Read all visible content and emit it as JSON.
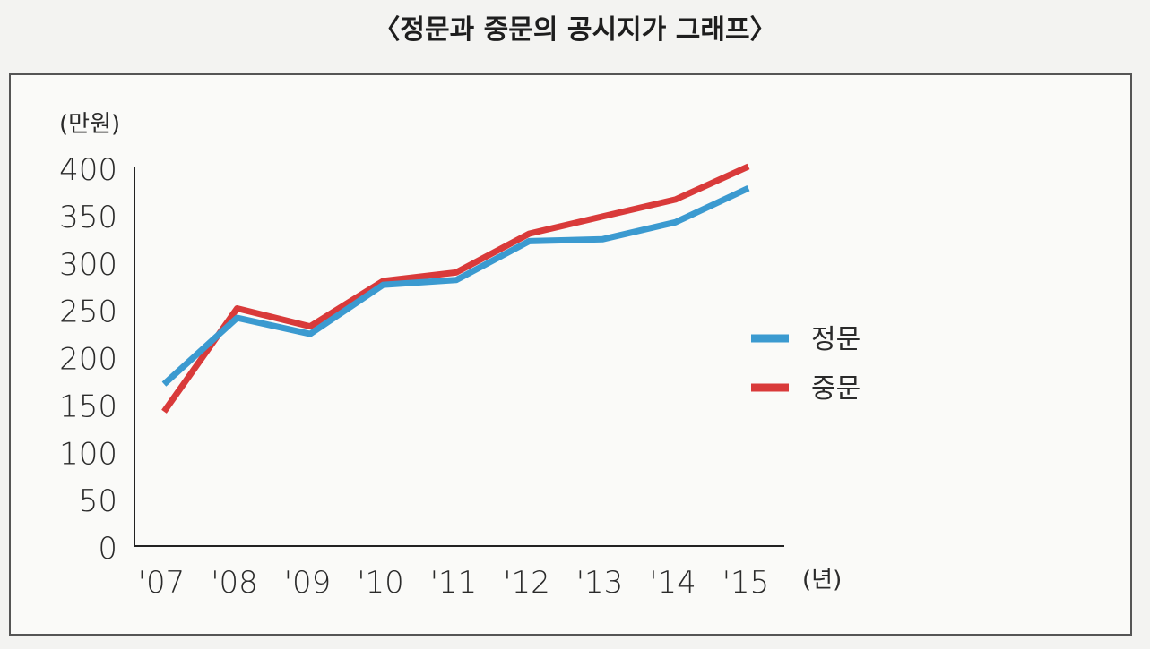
{
  "chart_data": {
    "type": "line",
    "title": "〈정문과 중문의 공시지가 그래프〉",
    "ylabel": "(만원)",
    "xlabel": "(년)",
    "ylim": [
      0,
      400
    ],
    "yticks": [
      "0",
      "50",
      "100",
      "150",
      "200",
      "250",
      "300",
      "350",
      "400"
    ],
    "ytick_values": [
      0,
      50,
      100,
      150,
      200,
      250,
      300,
      350,
      400
    ],
    "categories": [
      "'07",
      "'08",
      "'09",
      "'10",
      "'11",
      "'12",
      "'13",
      "'14",
      "'15"
    ],
    "series": [
      {
        "name": "정문",
        "color": "#3b9ad0",
        "values": [
          172,
          242,
          225,
          277,
          282,
          323,
          325,
          343,
          379
        ]
      },
      {
        "name": "중문",
        "color": "#d93a3a",
        "values": [
          143,
          252,
          233,
          281,
          290,
          331,
          349,
          367,
          402
        ]
      }
    ],
    "legend": "right"
  }
}
